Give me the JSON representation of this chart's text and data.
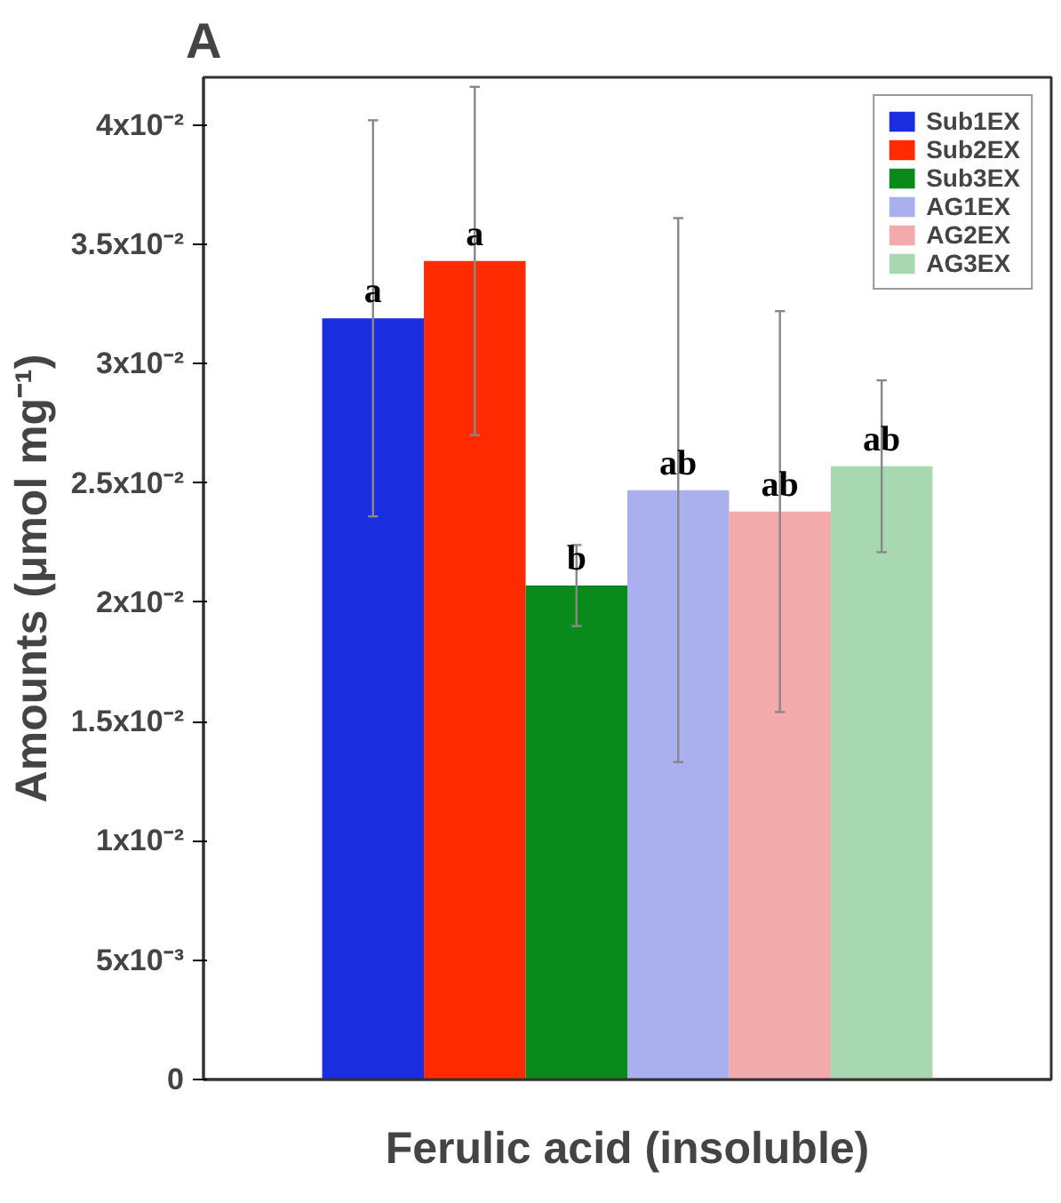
{
  "chart_data": {
    "type": "bar",
    "title": "A",
    "xlabel": "Ferulic acid (insoluble)",
    "ylabel": "Amounts (μmol mg⁻¹)",
    "categories": [
      null
    ],
    "series": [
      {
        "name": "Sub1EX",
        "color": "#1a2ee0",
        "values": [
          0.0319
        ],
        "errors": [
          0.0083
        ]
      },
      {
        "name": "Sub2EX",
        "color": "#ff2a00",
        "values": [
          0.0343
        ],
        "errors": [
          0.0073
        ]
      },
      {
        "name": "Sub3EX",
        "color": "#0a8a1a",
        "values": [
          0.0207
        ],
        "errors": [
          0.0017
        ]
      },
      {
        "name": "AG1EX",
        "color": "#aab0ee",
        "values": [
          0.0247
        ],
        "errors": [
          0.0114
        ]
      },
      {
        "name": "AG2EX",
        "color": "#f2aaaa",
        "values": [
          0.0238
        ],
        "errors": [
          0.0084
        ]
      },
      {
        "name": "AG3EX",
        "color": "#a8d8b0",
        "values": [
          0.0257
        ],
        "errors": [
          0.0036
        ]
      }
    ],
    "annotations": [
      {
        "text": "a",
        "y": 0.0319
      },
      {
        "text": "a",
        "y": 0.0343
      },
      {
        "text": "b",
        "y": 0.0207
      },
      {
        "text": "ab",
        "y": 0.0247
      },
      {
        "text": "ab",
        "y": 0.0238
      },
      {
        "text": "ab",
        "y": 0.0257
      }
    ],
    "ylim": [
      0,
      0.042
    ],
    "yticks": [
      0,
      {
        "value": 0.005,
        "label": "5x10⁻³"
      },
      {
        "value": 0.01,
        "label": "1x10⁻²"
      },
      {
        "value": 0.015,
        "label": "1.5x10⁻²"
      },
      {
        "value": 0.02,
        "label": "2x10⁻²"
      },
      {
        "value": 0.025,
        "label": "2.5x10⁻²"
      },
      {
        "value": 0.03,
        "label": "3x10⁻²"
      },
      {
        "value": 0.035,
        "label": "3.5x10⁻²"
      },
      {
        "value": 0.04,
        "label": "4x10⁻²"
      }
    ],
    "tick_labels": "y",
    "grid": false,
    "legend": "top right"
  }
}
